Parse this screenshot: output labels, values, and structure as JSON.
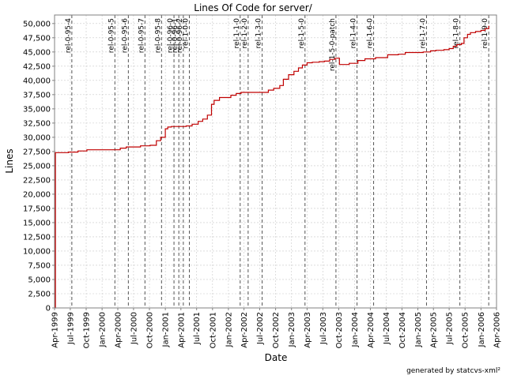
{
  "chart_data": {
    "type": "line",
    "title": "Lines Of Code for server/",
    "xlabel": "Date",
    "ylabel": "Lines",
    "footer": "generated by statcvs-xml²",
    "xlim": [
      "1999-04",
      "2006-04"
    ],
    "ylim": [
      0,
      51500
    ],
    "grid": true,
    "colors": {
      "line": "#c00000",
      "marker": "#555555",
      "grid": "#c8c8c8"
    },
    "x_ticks": [
      "Apr-1999",
      "Jul-1999",
      "Oct-1999",
      "Jan-2000",
      "Apr-2000",
      "Jul-2000",
      "Oct-2000",
      "Jan-2001",
      "Apr-2001",
      "Jul-2001",
      "Oct-2001",
      "Jan-2002",
      "Apr-2002",
      "Jul-2002",
      "Oct-2002",
      "Jan-2003",
      "Apr-2003",
      "Jul-2003",
      "Oct-2003",
      "Jan-2004",
      "Apr-2004",
      "Jul-2004",
      "Oct-2004",
      "Jan-2005",
      "Apr-2005",
      "Jul-2005",
      "Oct-2005",
      "Jan-2006",
      "Apr-2006"
    ],
    "y_ticks": [
      "0",
      "2,500",
      "5,000",
      "7,500",
      "10,000",
      "12,500",
      "15,000",
      "17,500",
      "20,000",
      "22,500",
      "25,000",
      "27,500",
      "30,000",
      "32,500",
      "35,000",
      "37,500",
      "40,000",
      "42,500",
      "45,000",
      "47,500",
      "50,000"
    ],
    "release_markers": [
      {
        "label": "rel-0-95-4",
        "date": "1999-07-10"
      },
      {
        "label": "rel-0-95-5",
        "date": "2000-03-15"
      },
      {
        "label": "rel-0-95-6",
        "date": "2000-06-01"
      },
      {
        "label": "rel-0-95-7",
        "date": "2000-09-05"
      },
      {
        "label": "rel-0-95-8",
        "date": "2000-12-10"
      },
      {
        "label": "rel-0-96-0",
        "date": "2001-02-20"
      },
      {
        "label": "rel-0-96-1",
        "date": "2001-03-20"
      },
      {
        "label": "rel-0-96-2",
        "date": "2001-04-15"
      },
      {
        "label": "rel-1-0-0",
        "date": "2001-05-20"
      },
      {
        "label": "rel-1-1-0",
        "date": "2002-03-10"
      },
      {
        "label": "rel-1-2-0",
        "date": "2002-04-25"
      },
      {
        "label": "rel-1-3-0",
        "date": "2002-07-15"
      },
      {
        "label": "rel-1-5-0",
        "date": "2003-03-20"
      },
      {
        "label": "rel-1-5-0-patch",
        "date": "2003-09-15"
      },
      {
        "label": "rel-1-4-0",
        "date": "2004-01-15"
      },
      {
        "label": "rel-1-6-0",
        "date": "2004-04-20"
      },
      {
        "label": "rel-1-7-0",
        "date": "2005-02-20"
      },
      {
        "label": "rel-1-8-0",
        "date": "2005-09-01"
      },
      {
        "label": "rel-1-9-0",
        "date": "2006-02-15"
      }
    ],
    "series": [
      {
        "name": "",
        "x": [
          "1999-04-05",
          "1999-04-06",
          "1999-06-20",
          "1999-08-15",
          "1999-10-05",
          "2000-03-20",
          "2000-04-15",
          "2000-05-20",
          "2000-08-10",
          "2000-10-05",
          "2000-11-10",
          "2000-12-05",
          "2001-01-01",
          "2001-01-15",
          "2001-02-05",
          "2001-05-01",
          "2001-06-05",
          "2001-07-10",
          "2001-08-05",
          "2001-09-01",
          "2001-09-25",
          "2001-10-10",
          "2001-11-10",
          "2002-01-15",
          "2002-02-15",
          "2002-03-15",
          "2002-07-20",
          "2002-08-20",
          "2002-09-20",
          "2002-10-25",
          "2002-11-15",
          "2002-12-15",
          "2003-01-15",
          "2003-02-10",
          "2003-03-05",
          "2003-04-01",
          "2003-05-01",
          "2003-06-10",
          "2003-07-10",
          "2003-08-10",
          "2003-09-10",
          "2003-10-05",
          "2003-12-01",
          "2004-01-20",
          "2004-03-01",
          "2004-05-01",
          "2004-07-10",
          "2004-09-10",
          "2004-10-20",
          "2005-02-01",
          "2005-03-15",
          "2005-04-15",
          "2005-06-01",
          "2005-07-01",
          "2005-07-25",
          "2005-08-15",
          "2005-09-10",
          "2005-09-25",
          "2005-10-15",
          "2005-11-01",
          "2005-12-01",
          "2006-01-01",
          "2006-01-25",
          "2006-02-15"
        ],
        "values": [
          0,
          27300,
          27400,
          27600,
          27800,
          27800,
          28100,
          28300,
          28500,
          28600,
          29400,
          30000,
          31500,
          31800,
          31900,
          32000,
          32300,
          32800,
          33200,
          33900,
          35800,
          36500,
          37000,
          37400,
          37700,
          37900,
          37900,
          38300,
          38600,
          39100,
          40200,
          41000,
          41600,
          42200,
          42700,
          43100,
          43200,
          43300,
          43400,
          43700,
          43900,
          42800,
          43000,
          43500,
          43800,
          44000,
          44500,
          44600,
          44900,
          45000,
          45200,
          45300,
          45400,
          45600,
          46000,
          46300,
          46500,
          47500,
          48100,
          48400,
          48600,
          48800,
          49100,
          49500
        ]
      }
    ]
  }
}
